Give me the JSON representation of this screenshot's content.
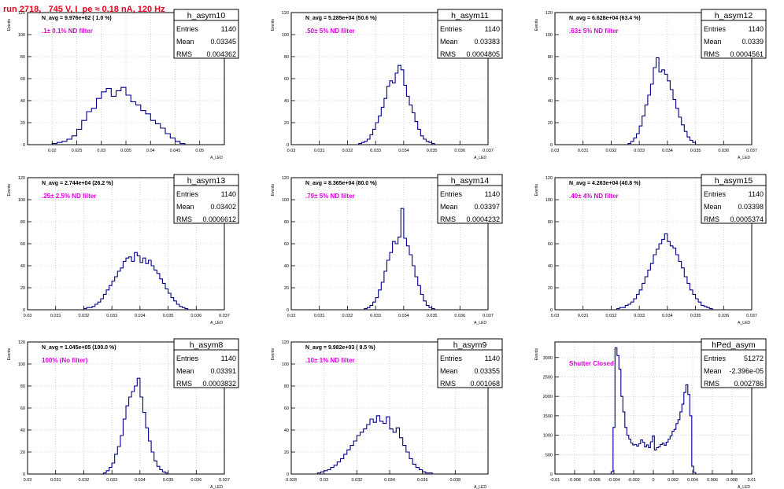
{
  "header": {
    "run_title": "run 2718,   745 V, I_pe ≈ 0.18 nA, 120 Hz"
  },
  "colors": {
    "title": "#e8001c",
    "annotation": "#e000e0",
    "histogram": "#00008b",
    "grid": "#b4b4b4",
    "axis": "#000000"
  },
  "chart_data": [
    {
      "type": "bar",
      "title": "h_asym10",
      "xlabel": "A_LED",
      "ylabel": "Events",
      "xlim": [
        0.015,
        0.055
      ],
      "ylim": [
        0,
        120
      ],
      "xticks": [
        "0.02",
        "0.025",
        "0.03",
        "0.035",
        "0.04",
        "0.045",
        "0.05"
      ],
      "yticks": [
        "0",
        "20",
        "40",
        "60",
        "80",
        "100",
        "120"
      ],
      "stats": {
        "entries_label": "Entries",
        "entries": "1140",
        "mean_label": "Mean",
        "mean": "0.03345",
        "rms_label": "RMS",
        "rms": "0.004362"
      },
      "navg": "N_avg = 9.976e+02 ( 1.0 %)",
      "annotation": ".1± 0.1% ND filter",
      "grid": true,
      "x": [
        0.0205,
        0.0215,
        0.0225,
        0.0235,
        0.0245,
        0.0255,
        0.0265,
        0.0275,
        0.0285,
        0.0295,
        0.0305,
        0.0315,
        0.0325,
        0.0335,
        0.0345,
        0.0355,
        0.0365,
        0.0375,
        0.0385,
        0.0395,
        0.0405,
        0.0415,
        0.0425,
        0.0435,
        0.0445,
        0.0455,
        0.0465
      ],
      "values": [
        1,
        2,
        3,
        5,
        8,
        14,
        22,
        30,
        33,
        42,
        48,
        51,
        44,
        49,
        52,
        45,
        39,
        36,
        31,
        28,
        22,
        19,
        15,
        10,
        6,
        3,
        1
      ]
    },
    {
      "type": "bar",
      "title": "h_asym11",
      "xlabel": "A_LED",
      "ylabel": "Events",
      "xlim": [
        0.03,
        0.037
      ],
      "ylim": [
        0,
        120
      ],
      "xticks": [
        "0.03",
        "0.031",
        "0.032",
        "0.033",
        "0.034",
        "0.035",
        "0.036",
        "0.037"
      ],
      "yticks": [
        "0",
        "20",
        "40",
        "60",
        "80",
        "100",
        "120"
      ],
      "stats": {
        "entries_label": "Entries",
        "entries": "1140",
        "mean_label": "Mean",
        "mean": "0.03383",
        "rms_label": "RMS",
        "rms": "0.0004805"
      },
      "navg": "N_avg = 5.285e+04 (50.6 %)",
      "annotation": ".50± 5% ND filter",
      "grid": true,
      "x": [
        0.03245,
        0.03255,
        0.03265,
        0.03275,
        0.03285,
        0.03295,
        0.03305,
        0.03315,
        0.03325,
        0.03335,
        0.03345,
        0.03355,
        0.03365,
        0.03375,
        0.03385,
        0.03395,
        0.03405,
        0.03415,
        0.03425,
        0.03435,
        0.03445,
        0.03455,
        0.03465,
        0.03475,
        0.03485,
        0.03495,
        0.03505
      ],
      "values": [
        1,
        2,
        3,
        5,
        9,
        14,
        20,
        26,
        34,
        42,
        53,
        58,
        56,
        65,
        72,
        68,
        54,
        44,
        36,
        29,
        21,
        14,
        8,
        5,
        3,
        2,
        1
      ]
    },
    {
      "type": "bar",
      "title": "h_asym12",
      "xlabel": "A_LED",
      "ylabel": "Events",
      "xlim": [
        0.03,
        0.037
      ],
      "ylim": [
        0,
        120
      ],
      "xticks": [
        "0.03",
        "0.031",
        "0.032",
        "0.033",
        "0.034",
        "0.035",
        "0.036",
        "0.037"
      ],
      "yticks": [
        "0",
        "20",
        "40",
        "60",
        "80",
        "100",
        "120"
      ],
      "stats": {
        "entries_label": "Entries",
        "entries": "1140",
        "mean_label": "Mean",
        "mean": "0.0339",
        "rms_label": "RMS",
        "rms": "0.0004561"
      },
      "navg": "N_avg = 6.628e+04 (63.4 %)",
      "annotation": ".63± 5% ND filter",
      "grid": true,
      "x": [
        0.03265,
        0.03275,
        0.03285,
        0.03295,
        0.03305,
        0.03315,
        0.03325,
        0.03335,
        0.03345,
        0.03355,
        0.03365,
        0.03375,
        0.03385,
        0.03395,
        0.03405,
        0.03415,
        0.03425,
        0.03435,
        0.03445,
        0.03455,
        0.03465,
        0.03475,
        0.03485,
        0.03495
      ],
      "values": [
        1,
        3,
        6,
        10,
        17,
        26,
        36,
        45,
        55,
        70,
        79,
        66,
        68,
        64,
        58,
        50,
        41,
        33,
        25,
        18,
        12,
        7,
        4,
        2
      ]
    },
    {
      "type": "bar",
      "title": "h_asym13",
      "xlabel": "A_LED",
      "ylabel": "Events",
      "xlim": [
        0.03,
        0.037
      ],
      "ylim": [
        0,
        120
      ],
      "xticks": [
        "0.03",
        "0.031",
        "0.032",
        "0.033",
        "0.034",
        "0.035",
        "0.036",
        "0.037"
      ],
      "yticks": [
        "0",
        "20",
        "40",
        "60",
        "80",
        "100",
        "120"
      ],
      "stats": {
        "entries_label": "Entries",
        "entries": "1140",
        "mean_label": "Mean",
        "mean": "0.03402",
        "rms_label": "RMS",
        "rms": "0.0006612"
      },
      "navg": "N_avg = 2.744e+04 (26.2 %)",
      "annotation": ".25± 2.5% ND filter",
      "grid": true,
      "x": [
        0.03205,
        0.03215,
        0.03225,
        0.03235,
        0.03245,
        0.03255,
        0.03265,
        0.03275,
        0.03285,
        0.03295,
        0.03305,
        0.03315,
        0.03325,
        0.03335,
        0.03345,
        0.03355,
        0.03365,
        0.03375,
        0.03385,
        0.03395,
        0.03405,
        0.03415,
        0.03425,
        0.03435,
        0.03445,
        0.03455,
        0.03465,
        0.03475,
        0.03485,
        0.03495,
        0.03505,
        0.03515,
        0.03525,
        0.03535,
        0.03545,
        0.03555,
        0.03565
      ],
      "values": [
        1,
        2,
        2,
        3,
        5,
        7,
        10,
        14,
        18,
        22,
        26,
        30,
        35,
        38,
        44,
        47,
        48,
        44,
        52,
        49,
        43,
        47,
        42,
        45,
        40,
        36,
        33,
        28,
        24,
        19,
        15,
        11,
        8,
        5,
        3,
        2,
        1
      ]
    },
    {
      "type": "bar",
      "title": "h_asym14",
      "xlabel": "A_LED",
      "ylabel": "Events",
      "xlim": [
        0.03,
        0.037
      ],
      "ylim": [
        0,
        120
      ],
      "xticks": [
        "0.03",
        "0.031",
        "0.032",
        "0.033",
        "0.034",
        "0.035",
        "0.036",
        "0.037"
      ],
      "yticks": [
        "0",
        "20",
        "40",
        "60",
        "80",
        "100",
        "120"
      ],
      "stats": {
        "entries_label": "Entries",
        "entries": "1140",
        "mean_label": "Mean",
        "mean": "0.03397",
        "rms_label": "RMS",
        "rms": "0.0004232"
      },
      "navg": "N_avg = 8.365e+04 (80.0 %)",
      "annotation": ".79± 5% ND filter",
      "grid": true,
      "x": [
        0.03265,
        0.03275,
        0.03285,
        0.03295,
        0.03305,
        0.03315,
        0.03325,
        0.03335,
        0.03345,
        0.03355,
        0.03365,
        0.03375,
        0.03385,
        0.03395,
        0.03405,
        0.03415,
        0.03425,
        0.03435,
        0.03445,
        0.03455,
        0.03465,
        0.03475,
        0.03485,
        0.03495,
        0.03505
      ],
      "values": [
        1,
        2,
        4,
        7,
        11,
        18,
        25,
        35,
        45,
        52,
        62,
        60,
        66,
        92,
        65,
        58,
        50,
        40,
        30,
        22,
        14,
        8,
        4,
        2,
        1
      ]
    },
    {
      "type": "bar",
      "title": "h_asym15",
      "xlabel": "A_LED",
      "ylabel": "Events",
      "xlim": [
        0.03,
        0.037
      ],
      "ylim": [
        0,
        120
      ],
      "xticks": [
        "0.03",
        "0.031",
        "0.032",
        "0.033",
        "0.034",
        "0.035",
        "0.036",
        "0.037"
      ],
      "yticks": [
        "0",
        "20",
        "40",
        "60",
        "80",
        "100",
        "120"
      ],
      "stats": {
        "entries_label": "Entries",
        "entries": "1140",
        "mean_label": "Mean",
        "mean": "0.03398",
        "rms_label": "RMS",
        "rms": "0.0005374"
      },
      "navg": "N_avg = 4.263e+04 (40.8 %)",
      "annotation": ".40± 4% ND filter",
      "grid": true,
      "x": [
        0.03225,
        0.03235,
        0.03245,
        0.03255,
        0.03265,
        0.03275,
        0.03285,
        0.03295,
        0.03305,
        0.03315,
        0.03325,
        0.03335,
        0.03345,
        0.03355,
        0.03365,
        0.03375,
        0.03385,
        0.03395,
        0.03405,
        0.03415,
        0.03425,
        0.03435,
        0.03445,
        0.03455,
        0.03465,
        0.03475,
        0.03485,
        0.03495,
        0.03505,
        0.03515,
        0.03525,
        0.03535,
        0.03545,
        0.03555
      ],
      "values": [
        1,
        2,
        2,
        4,
        5,
        7,
        10,
        14,
        18,
        24,
        30,
        36,
        42,
        50,
        55,
        60,
        64,
        69,
        62,
        58,
        56,
        50,
        44,
        38,
        30,
        24,
        18,
        14,
        10,
        7,
        4,
        3,
        2,
        1
      ]
    },
    {
      "type": "bar",
      "title": "h_asym8",
      "xlabel": "A_LED",
      "ylabel": "Events",
      "xlim": [
        0.03,
        0.037
      ],
      "ylim": [
        0,
        120
      ],
      "xticks": [
        "0.03",
        "0.031",
        "0.032",
        "0.033",
        "0.034",
        "0.035",
        "0.036",
        "0.037"
      ],
      "yticks": [
        "0",
        "20",
        "40",
        "60",
        "80",
        "100",
        "120"
      ],
      "stats": {
        "entries_label": "Entries",
        "entries": "1140",
        "mean_label": "Mean",
        "mean": "0.03391",
        "rms_label": "RMS",
        "rms": "0.0003832"
      },
      "navg": "N_avg = 1.045e+05 (100.0 %)",
      "annotation": "100% (No filter)",
      "grid": true,
      "x": [
        0.03275,
        0.03285,
        0.03295,
        0.03305,
        0.03315,
        0.03325,
        0.03335,
        0.03345,
        0.03355,
        0.03365,
        0.03375,
        0.03385,
        0.03395,
        0.03405,
        0.03415,
        0.03425,
        0.03435,
        0.03445,
        0.03455,
        0.03465,
        0.03475,
        0.03485,
        0.03495
      ],
      "values": [
        1,
        3,
        6,
        10,
        18,
        25,
        35,
        50,
        62,
        70,
        75,
        80,
        87,
        70,
        56,
        42,
        30,
        20,
        12,
        7,
        4,
        2,
        1
      ]
    },
    {
      "type": "bar",
      "title": "h_asym9",
      "xlabel": "A_LED",
      "ylabel": "Events",
      "xlim": [
        0.028,
        0.04
      ],
      "ylim": [
        0,
        120
      ],
      "xticks": [
        "0.028",
        "0.03",
        "0.032",
        "0.034",
        "0.036",
        "0.038"
      ],
      "yticks": [
        "0",
        "20",
        "40",
        "60",
        "80",
        "100",
        "120"
      ],
      "stats": {
        "entries_label": "Entries",
        "entries": "1140",
        "mean_label": "Mean",
        "mean": "0.03355",
        "rms_label": "RMS",
        "rms": "0.001068"
      },
      "navg": "N_avg = 9.982e+03 ( 9.5 %)",
      "annotation": ".10± 1% ND filter",
      "grid": true,
      "x": [
        0.0297,
        0.0299,
        0.0301,
        0.0303,
        0.0305,
        0.0307,
        0.0309,
        0.0311,
        0.0313,
        0.0315,
        0.0317,
        0.0319,
        0.0321,
        0.0323,
        0.0325,
        0.0327,
        0.0329,
        0.0331,
        0.0333,
        0.0335,
        0.0337,
        0.0339,
        0.0341,
        0.0343,
        0.0345,
        0.0347,
        0.0349,
        0.0351,
        0.0353,
        0.0355,
        0.0357,
        0.0359,
        0.0361,
        0.0363,
        0.0365
      ],
      "values": [
        1,
        2,
        3,
        4,
        6,
        8,
        11,
        14,
        18,
        22,
        26,
        30,
        35,
        38,
        41,
        45,
        50,
        47,
        53,
        48,
        46,
        52,
        41,
        38,
        42,
        33,
        26,
        20,
        14,
        9,
        6,
        4,
        2,
        1,
        1
      ]
    },
    {
      "type": "bar",
      "title": "hPed_asym",
      "xlabel": "A_LED",
      "ylabel": "Events",
      "xlim": [
        -0.01,
        0.01
      ],
      "ylim": [
        0,
        3400
      ],
      "xticks": [
        "-0.01",
        "-0.008",
        "-0.006",
        "-0.004",
        "-0.002",
        "0",
        "0.002",
        "0.004",
        "0.006",
        "0.008",
        "0.01"
      ],
      "yticks": [
        "0",
        "500",
        "1000",
        "1500",
        "2000",
        "2500",
        "3000"
      ],
      "stats": {
        "entries_label": "Entries",
        "entries": "51272",
        "mean_label": "Mean",
        "mean": "-2.396e-05",
        "rms_label": "RMS",
        "rms": "0.002786"
      },
      "navg": "",
      "annotation": "Shutter Closed",
      "grid": true,
      "x": [
        -0.0042,
        -0.004,
        -0.0038,
        -0.0036,
        -0.0034,
        -0.0032,
        -0.003,
        -0.0028,
        -0.0026,
        -0.0024,
        -0.0022,
        -0.002,
        -0.0018,
        -0.0016,
        -0.0014,
        -0.0012,
        -0.001,
        -0.0008,
        -0.0006,
        -0.0004,
        -0.0002,
        0.0,
        0.0002,
        0.0004,
        0.0006,
        0.0008,
        0.001,
        0.0012,
        0.0014,
        0.0016,
        0.0018,
        0.002,
        0.0022,
        0.0024,
        0.0026,
        0.0028,
        0.003,
        0.0032,
        0.0034,
        0.0036,
        0.0038,
        0.004,
        0.0042
      ],
      "values": [
        60,
        1200,
        3250,
        3050,
        2700,
        2000,
        1600,
        1200,
        1000,
        900,
        800,
        750,
        760,
        720,
        780,
        880,
        820,
        700,
        750,
        680,
        830,
        980,
        620,
        680,
        700,
        760,
        800,
        740,
        820,
        900,
        980,
        1100,
        1150,
        1300,
        1400,
        1600,
        1800,
        2100,
        2300,
        2050,
        1500,
        200,
        40
      ]
    }
  ]
}
